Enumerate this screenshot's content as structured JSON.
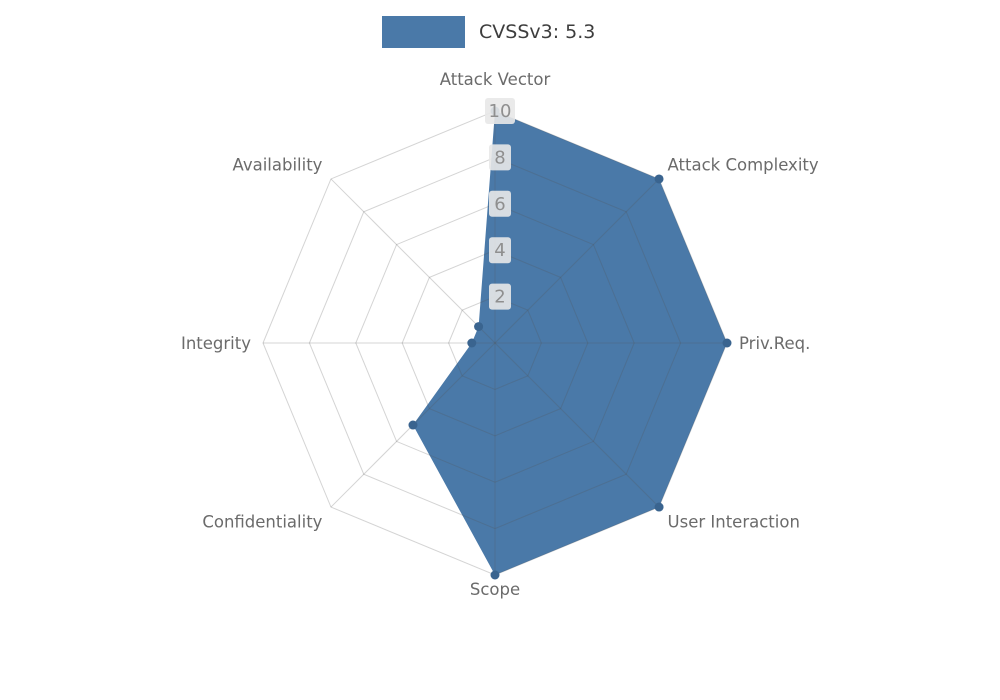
{
  "chart_data": {
    "type": "radar",
    "legend": "CVSSv3: 5.3",
    "axes": [
      "Attack Vector",
      "Attack Complexity",
      "Priv.Req.",
      "User Interaction",
      "Scope",
      "Confidentiality",
      "Integrity",
      "Availability"
    ],
    "series": [
      {
        "name": "CVSSv3: 5.3",
        "values": [
          10,
          10,
          10,
          10,
          10,
          5,
          1,
          1
        ]
      }
    ],
    "ticks": [
      2,
      4,
      6,
      8,
      10
    ],
    "rmax": 10,
    "grid": true,
    "legend_position": "top-center",
    "colors": {
      "fill": "#4a79a8",
      "marker": "#3a648f",
      "grid": "#555555",
      "label": "#6b6b6b",
      "tick_text": "#8f8f8f",
      "legend_text": "#3d3d3d"
    }
  }
}
